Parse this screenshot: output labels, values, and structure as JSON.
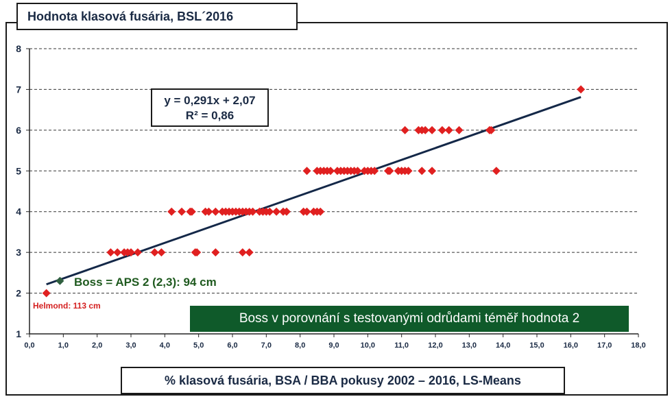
{
  "chart_data": {
    "type": "scatter",
    "title": "Hodnota klasová fusária, BSL´2016",
    "xlabel": "% klasová fusária, BSA / BBA pokusy 2002 – 2016, LS-Means",
    "ylabel": "",
    "xlim": [
      0,
      18
    ],
    "ylim": [
      1,
      8
    ],
    "x_ticks": [
      "0,0",
      "1,0",
      "2,0",
      "3,0",
      "4,0",
      "5,0",
      "6,0",
      "7,0",
      "8,0",
      "9,0",
      "10,0",
      "11,0",
      "12,0",
      "13,0",
      "14,0",
      "15,0",
      "16,0",
      "17,0",
      "18,0"
    ],
    "y_ticks": [
      "1",
      "2",
      "3",
      "4",
      "5",
      "6",
      "7",
      "8"
    ],
    "grid": "horizontal dashed",
    "series": [
      {
        "color": "#e02020",
        "points": [
          [
            0.5,
            2
          ],
          [
            2.4,
            3
          ],
          [
            2.6,
            3
          ],
          [
            2.8,
            3
          ],
          [
            2.9,
            3
          ],
          [
            3.0,
            3
          ],
          [
            3.2,
            3
          ],
          [
            3.7,
            3
          ],
          [
            3.9,
            3
          ],
          [
            4.9,
            3
          ],
          [
            4.95,
            3
          ],
          [
            5.5,
            3
          ],
          [
            6.3,
            3
          ],
          [
            6.5,
            3
          ],
          [
            4.2,
            4
          ],
          [
            4.5,
            4
          ],
          [
            4.75,
            4
          ],
          [
            4.8,
            4
          ],
          [
            5.2,
            4
          ],
          [
            5.3,
            4
          ],
          [
            5.5,
            4
          ],
          [
            5.7,
            4
          ],
          [
            5.8,
            4
          ],
          [
            5.9,
            4
          ],
          [
            6.0,
            4
          ],
          [
            6.1,
            4
          ],
          [
            6.2,
            4
          ],
          [
            6.3,
            4
          ],
          [
            6.4,
            4
          ],
          [
            6.5,
            4
          ],
          [
            6.6,
            4
          ],
          [
            6.8,
            4
          ],
          [
            6.9,
            4
          ],
          [
            7.0,
            4
          ],
          [
            7.1,
            4
          ],
          [
            7.3,
            4
          ],
          [
            7.5,
            4
          ],
          [
            7.6,
            4
          ],
          [
            8.1,
            4
          ],
          [
            8.2,
            4
          ],
          [
            8.4,
            4
          ],
          [
            8.5,
            4
          ],
          [
            8.6,
            4
          ],
          [
            8.2,
            5
          ],
          [
            8.5,
            5
          ],
          [
            8.6,
            5
          ],
          [
            8.7,
            5
          ],
          [
            8.8,
            5
          ],
          [
            8.9,
            5
          ],
          [
            9.1,
            5
          ],
          [
            9.2,
            5
          ],
          [
            9.3,
            5
          ],
          [
            9.4,
            5
          ],
          [
            9.5,
            5
          ],
          [
            9.6,
            5
          ],
          [
            9.7,
            5
          ],
          [
            9.9,
            5
          ],
          [
            10.0,
            5
          ],
          [
            10.1,
            5
          ],
          [
            10.2,
            5
          ],
          [
            10.6,
            5
          ],
          [
            10.65,
            5
          ],
          [
            10.9,
            5
          ],
          [
            11.0,
            5
          ],
          [
            11.1,
            5
          ],
          [
            11.2,
            5
          ],
          [
            11.6,
            5
          ],
          [
            11.9,
            5
          ],
          [
            13.8,
            5
          ],
          [
            11.1,
            6
          ],
          [
            11.5,
            6
          ],
          [
            11.6,
            6
          ],
          [
            11.7,
            6
          ],
          [
            11.9,
            6
          ],
          [
            12.2,
            6
          ],
          [
            12.4,
            6
          ],
          [
            12.7,
            6
          ],
          [
            13.6,
            6
          ],
          [
            13.65,
            6
          ],
          [
            16.3,
            7
          ]
        ]
      },
      {
        "color": "#2f5f3f",
        "points": [
          [
            0.9,
            2.3
          ]
        ]
      }
    ],
    "trendline": {
      "slope": 0.291,
      "intercept": 2.07,
      "x_range": [
        0.5,
        16.3
      ],
      "equation": "y = 0,291x + 2,07",
      "r2": "R² = 0,86"
    },
    "annotations": {
      "boss": "Boss = APS 2 (2,3): 94 cm",
      "helmond": "Helmond: 113 cm",
      "callout": "Boss v porovnání s testovanými odrůdami téměř hodnota 2"
    }
  }
}
